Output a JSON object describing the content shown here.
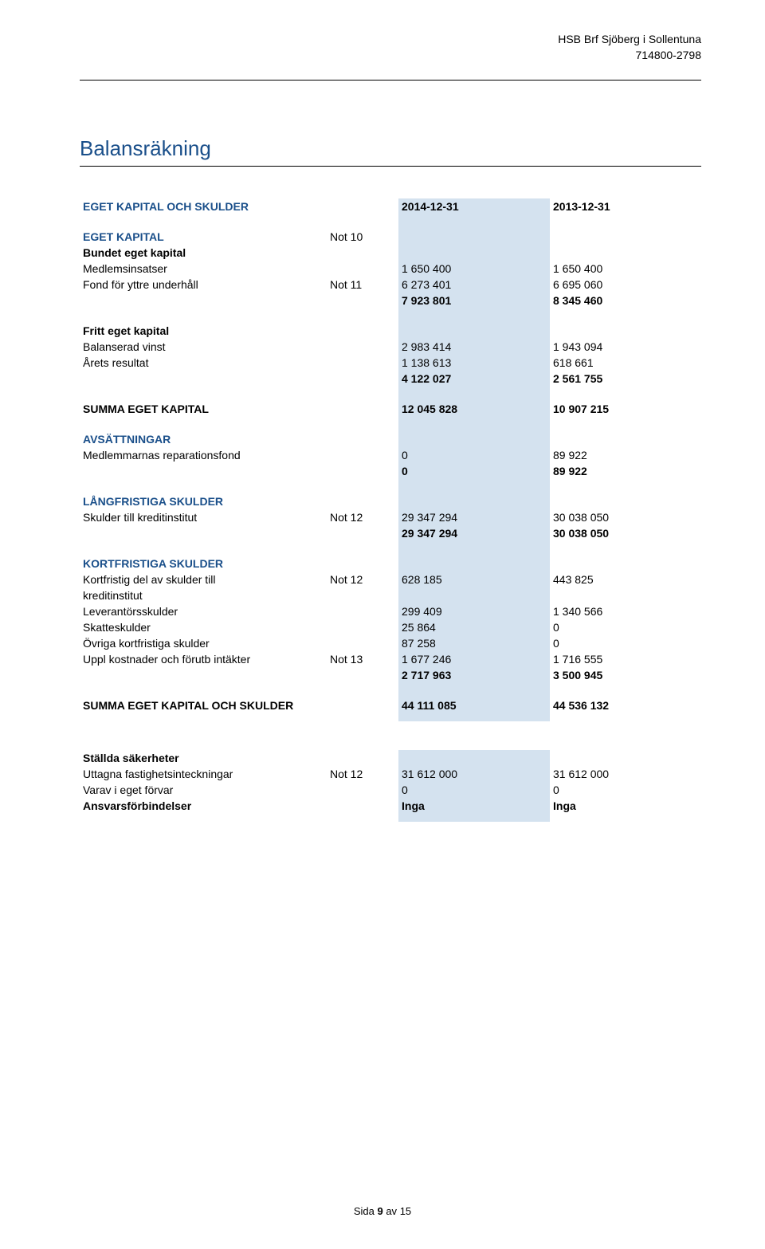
{
  "header": {
    "company": "HSB Brf Sjöberg i Sollentuna",
    "orgno": "714800-2798"
  },
  "title": "Balansräkning",
  "col_headers": {
    "c1": "2014-12-31",
    "c2": "2013-12-31"
  },
  "s1": {
    "title": "EGET KAPITAL OCH SKULDER"
  },
  "s2": {
    "title": "EGET KAPITAL",
    "note": "Not 10",
    "sub": "Bundet eget kapital",
    "r1": {
      "label": "Medlemsinsatser",
      "v1": "1 650 400",
      "v2": "1 650 400"
    },
    "r2": {
      "label": "Fond för yttre underhåll",
      "note": "Not 11",
      "v1": "6 273 401",
      "v2": "6 695 060"
    },
    "total": {
      "v1": "7 923 801",
      "v2": "8 345 460"
    }
  },
  "s3": {
    "sub": "Fritt eget kapital",
    "r1": {
      "label": "Balanserad vinst",
      "v1": "2 983 414",
      "v2": "1 943 094"
    },
    "r2": {
      "label": "Årets resultat",
      "v1": "1 138 613",
      "v2": "618 661"
    },
    "total": {
      "v1": "4 122 027",
      "v2": "2 561 755"
    }
  },
  "s4": {
    "label": "SUMMA EGET KAPITAL",
    "v1": "12 045 828",
    "v2": "10 907 215"
  },
  "s5": {
    "title": "AVSÄTTNINGAR",
    "r1": {
      "label": "Medlemmarnas reparationsfond",
      "v1": "0",
      "v2": "89 922"
    },
    "total": {
      "v1": "0",
      "v2": "89 922"
    }
  },
  "s6": {
    "title": "LÅNGFRISTIGA SKULDER",
    "r1": {
      "label": "Skulder till kreditinstitut",
      "note": "Not 12",
      "v1": "29 347 294",
      "v2": "30 038 050"
    },
    "total": {
      "v1": "29 347 294",
      "v2": "30 038 050"
    }
  },
  "s7": {
    "title": "KORTFRISTIGA SKULDER",
    "r1": {
      "label_a": "Kortfristig del av skulder till",
      "label_b": "kreditinstitut",
      "note": "Not 12",
      "v1": "628 185",
      "v2": "443 825"
    },
    "r2": {
      "label": "Leverantörsskulder",
      "v1": "299 409",
      "v2": "1 340 566"
    },
    "r3": {
      "label": "Skatteskulder",
      "v1": "25 864",
      "v2": "0"
    },
    "r4": {
      "label": "Övriga kortfristiga skulder",
      "v1": "87 258",
      "v2": "0"
    },
    "r5": {
      "label": "Uppl kostnader och förutb intäkter",
      "note": "Not 13",
      "v1": "1 677 246",
      "v2": "1 716 555"
    },
    "total": {
      "v1": "2 717 963",
      "v2": "3 500 945"
    }
  },
  "s8": {
    "label": "SUMMA EGET KAPITAL OCH SKULDER",
    "v1": "44 111 085",
    "v2": "44 536 132"
  },
  "s9": {
    "sub": "Ställda säkerheter",
    "r1": {
      "label": "Uttagna fastighetsinteckningar",
      "note": "Not 12",
      "v1": "31 612 000",
      "v2": "31 612 000"
    },
    "r2": {
      "label": "Varav i eget förvar",
      "v1": "0",
      "v2": "0"
    },
    "r3": {
      "label": "Ansvarsförbindelser",
      "v1": "Inga",
      "v2": "Inga"
    }
  },
  "footer": {
    "prefix": "Sida ",
    "num": "9",
    "of": " av ",
    "total": "15"
  },
  "colors": {
    "heading_blue": "#1a4f8a",
    "band_blue": "#d4e2ef",
    "text": "#000000",
    "background": "#ffffff"
  }
}
